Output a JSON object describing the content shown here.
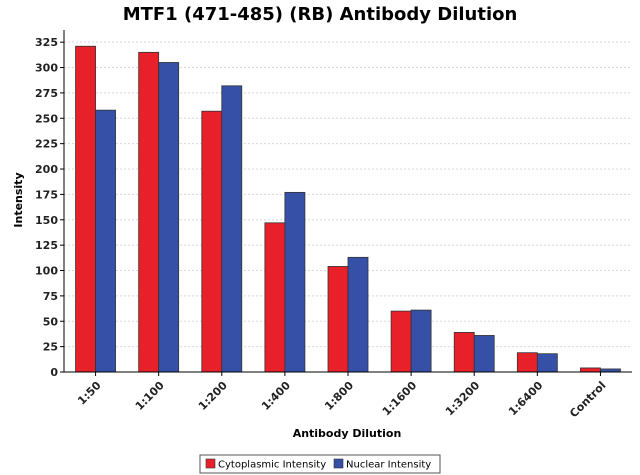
{
  "chart_data": {
    "type": "bar",
    "title": "MTF1 (471-485) (RB) Antibody Dilution",
    "xlabel": "Antibody Dilution",
    "ylabel": "Intensity",
    "ylim": [
      0,
      337
    ],
    "yticks": [
      0,
      25,
      50,
      75,
      100,
      125,
      150,
      175,
      200,
      225,
      250,
      275,
      300,
      325
    ],
    "grid": true,
    "legend_position": "bottom",
    "categories": [
      "1:50",
      "1:100",
      "1:200",
      "1:400",
      "1:800",
      "1:1600",
      "1:3200",
      "1:6400",
      "Control"
    ],
    "series": [
      {
        "name": "Cytoplasmic Intensity",
        "color": "#e8202a",
        "values": [
          321,
          315,
          257,
          147,
          104,
          60,
          39,
          19,
          4
        ]
      },
      {
        "name": "Nuclear Intensity",
        "color": "#3550a6",
        "values": [
          258,
          305,
          282,
          177,
          113,
          61,
          36,
          18,
          3
        ]
      }
    ]
  }
}
